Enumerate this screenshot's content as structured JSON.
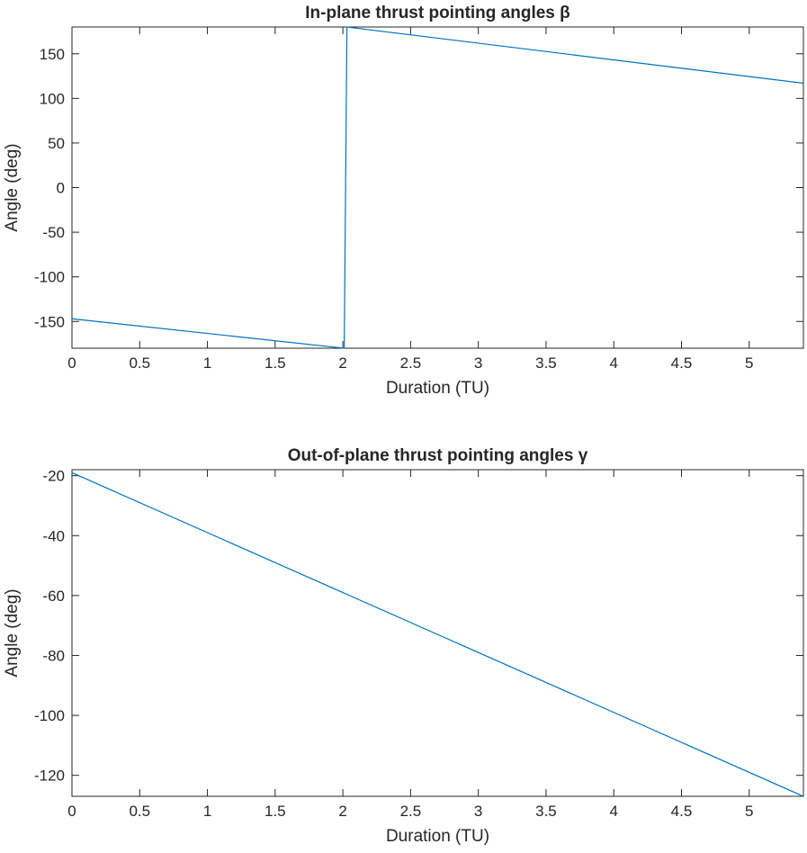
{
  "accent_color": "#0072BD",
  "chart_data": [
    {
      "type": "line",
      "title": "In-plane thrust pointing angles β",
      "xlabel": "Duration (TU)",
      "ylabel": "Angle (deg)",
      "xlim": [
        0,
        5.4
      ],
      "ylim": [
        -180,
        180
      ],
      "xticks": [
        "0",
        "0.5",
        "1",
        "1.5",
        "2",
        "2.5",
        "3",
        "3.5",
        "4",
        "4.5",
        "5"
      ],
      "yticks": [
        "-150",
        "-100",
        "-50",
        "0",
        "50",
        "100",
        "150"
      ],
      "grid": false,
      "legend": "none",
      "series": [
        {
          "x": [
            0,
            2.01,
            2.03,
            5.4
          ],
          "y": [
            -147,
            -180,
            180,
            117
          ]
        }
      ]
    },
    {
      "type": "line",
      "title": "Out-of-plane thrust pointing angles γ",
      "xlabel": "Duration (TU)",
      "ylabel": "Angle (deg)",
      "xlim": [
        0,
        5.4
      ],
      "ylim": [
        -127,
        -18
      ],
      "xticks": [
        "0",
        "0.5",
        "1",
        "1.5",
        "2",
        "2.5",
        "3",
        "3.5",
        "4",
        "4.5",
        "5"
      ],
      "yticks": [
        "-20",
        "-40",
        "-60",
        "-80",
        "-100",
        "-120"
      ],
      "grid": false,
      "legend": "none",
      "series": [
        {
          "x": [
            0,
            5.4
          ],
          "y": [
            -19,
            -127
          ]
        }
      ]
    }
  ]
}
